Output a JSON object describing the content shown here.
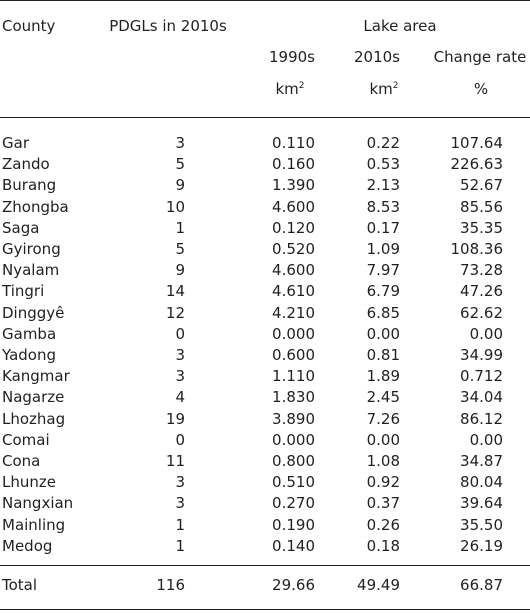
{
  "header": {
    "county": "County",
    "pdgls": "PDGLs in 2010s",
    "lake_area": "Lake area",
    "y1990": "1990s",
    "y2010": "2010s",
    "change": "Change rate",
    "unit_km": "km",
    "unit_sup": "2",
    "unit_pct": "%"
  },
  "rows": [
    {
      "county": "Gar",
      "pdgls": "3",
      "a1990": "0.110",
      "a2010": "0.22",
      "rate": "107.64"
    },
    {
      "county": "Zando",
      "pdgls": "5",
      "a1990": "0.160",
      "a2010": "0.53",
      "rate": "226.63"
    },
    {
      "county": "Burang",
      "pdgls": "9",
      "a1990": "1.390",
      "a2010": "2.13",
      "rate": "52.67"
    },
    {
      "county": "Zhongba",
      "pdgls": "10",
      "a1990": "4.600",
      "a2010": "8.53",
      "rate": "85.56"
    },
    {
      "county": "Saga",
      "pdgls": "1",
      "a1990": "0.120",
      "a2010": "0.17",
      "rate": "35.35"
    },
    {
      "county": "Gyirong",
      "pdgls": "5",
      "a1990": "0.520",
      "a2010": "1.09",
      "rate": "108.36"
    },
    {
      "county": "Nyalam",
      "pdgls": "9",
      "a1990": "4.600",
      "a2010": "7.97",
      "rate": "73.28"
    },
    {
      "county": "Tingri",
      "pdgls": "14",
      "a1990": "4.610",
      "a2010": "6.79",
      "rate": "47.26"
    },
    {
      "county": "Dinggyê",
      "pdgls": "12",
      "a1990": "4.210",
      "a2010": "6.85",
      "rate": "62.62"
    },
    {
      "county": "Gamba",
      "pdgls": "0",
      "a1990": "0.000",
      "a2010": "0.00",
      "rate": "0.00"
    },
    {
      "county": "Yadong",
      "pdgls": "3",
      "a1990": "0.600",
      "a2010": "0.81",
      "rate": "34.99"
    },
    {
      "county": "Kangmar",
      "pdgls": "3",
      "a1990": "1.110",
      "a2010": "1.89",
      "rate": "0.712"
    },
    {
      "county": "Nagarze",
      "pdgls": "4",
      "a1990": "1.830",
      "a2010": "2.45",
      "rate": "34.04"
    },
    {
      "county": "Lhozhag",
      "pdgls": "19",
      "a1990": "3.890",
      "a2010": "7.26",
      "rate": "86.12"
    },
    {
      "county": "Comai",
      "pdgls": "0",
      "a1990": "0.000",
      "a2010": "0.00",
      "rate": "0.00"
    },
    {
      "county": "Cona",
      "pdgls": "11",
      "a1990": "0.800",
      "a2010": "1.08",
      "rate": "34.87"
    },
    {
      "county": "Lhunze",
      "pdgls": "3",
      "a1990": "0.510",
      "a2010": "0.92",
      "rate": "80.04"
    },
    {
      "county": "Nangxian",
      "pdgls": "3",
      "a1990": "0.270",
      "a2010": "0.37",
      "rate": "39.64"
    },
    {
      "county": "Mainling",
      "pdgls": "1",
      "a1990": "0.190",
      "a2010": "0.26",
      "rate": "35.50"
    },
    {
      "county": "Medog",
      "pdgls": "1",
      "a1990": "0.140",
      "a2010": "0.18",
      "rate": "26.19"
    }
  ],
  "total": {
    "county": "Total",
    "pdgls": "116",
    "a1990": "29.66",
    "a2010": "49.49",
    "rate": "66.87"
  }
}
